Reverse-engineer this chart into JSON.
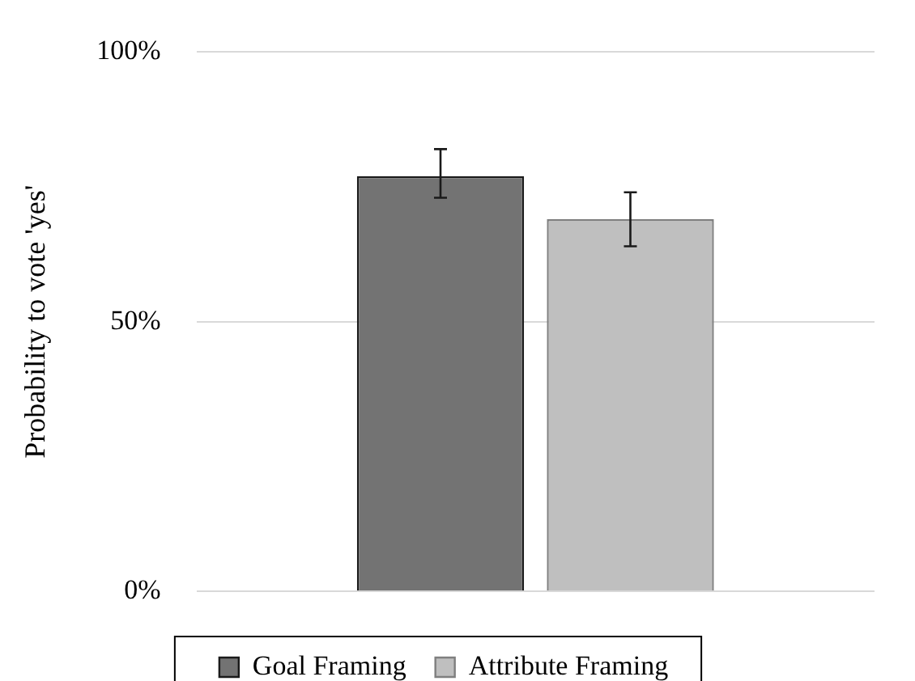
{
  "chart_data": {
    "type": "bar",
    "ylabel": "Probability to vote 'yes'",
    "categories": [
      null
    ],
    "series": [
      {
        "name": "Goal Framing",
        "color": "#737373",
        "values": [
          77
        ],
        "errors": [
          [
            73,
            82
          ]
        ]
      },
      {
        "name": "Attribute Framing",
        "color": "#bfbfbf",
        "values": [
          69
        ],
        "errors": [
          [
            64,
            74
          ]
        ]
      }
    ],
    "ylim": [
      0,
      100
    ],
    "yticks": [
      {
        "value": 0,
        "label": "0%"
      },
      {
        "value": 50,
        "label": "50%"
      },
      {
        "value": 100,
        "label": "100%"
      }
    ],
    "grid": "y",
    "legend": "bottom"
  }
}
